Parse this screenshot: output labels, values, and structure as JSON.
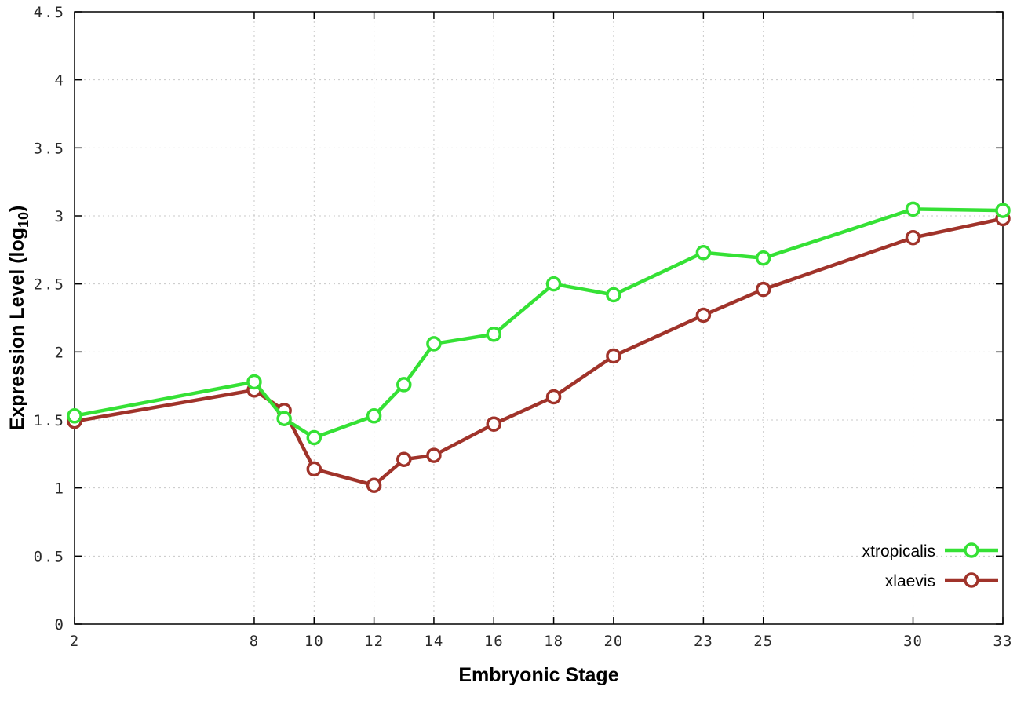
{
  "chart_data": {
    "type": "line",
    "title": "",
    "xlabel": "Embryonic Stage",
    "ylabel": "Expression Level (log10)",
    "ylabel_parts": {
      "main": "Expression Level (log",
      "sub": "10",
      "end": ")"
    },
    "x": [
      2,
      8,
      9,
      10,
      12,
      13,
      14,
      16,
      18,
      20,
      23,
      25,
      30,
      33
    ],
    "xticks": [
      2,
      8,
      10,
      12,
      14,
      16,
      18,
      20,
      23,
      25,
      30,
      33
    ],
    "yticks": [
      0,
      0.5,
      1,
      1.5,
      2,
      2.5,
      3,
      3.5,
      4,
      4.5
    ],
    "ytick_labels": [
      "0",
      "0.5",
      "1",
      "1.5",
      "2",
      "2.5",
      "3",
      "3.5",
      "4",
      "4.5"
    ],
    "xlim": [
      2,
      33
    ],
    "ylim": [
      0,
      4.5
    ],
    "grid": true,
    "legend_position": "bottom-right",
    "series": [
      {
        "name": "xtropicalis",
        "color": "#35e135",
        "values": [
          1.53,
          1.78,
          1.51,
          1.37,
          1.53,
          1.76,
          2.06,
          2.13,
          2.5,
          2.42,
          2.73,
          2.69,
          3.05,
          3.04
        ]
      },
      {
        "name": "xlaevis",
        "color": "#a0332a",
        "values": [
          1.49,
          1.72,
          1.57,
          1.14,
          1.02,
          1.21,
          1.24,
          1.47,
          1.67,
          1.97,
          2.27,
          2.46,
          2.84,
          2.98
        ]
      }
    ],
    "colors": {
      "grid": "#c8c8c8",
      "border": "#000000",
      "tick_text": "#2a2a2a",
      "label_text": "#000000",
      "marker_fill": "#ffffff"
    }
  }
}
